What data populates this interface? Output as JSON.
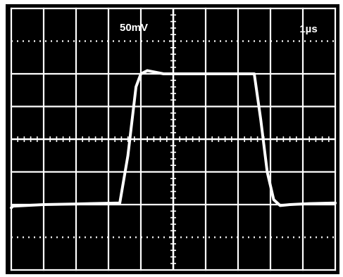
{
  "chart_data": {
    "type": "line",
    "title": "",
    "volts_per_div_label": "50mV",
    "time_per_div_label": "1µs",
    "divisions": {
      "horizontal": 10,
      "vertical": 8
    },
    "grid": true,
    "xlim": [
      0,
      10
    ],
    "ylim": [
      -4,
      4
    ],
    "series": [
      {
        "x": [
          0,
          0.05,
          1.0,
          2.0,
          3.35,
          3.6,
          3.85,
          4.0,
          4.2,
          4.45,
          4.7,
          5.0,
          6.0,
          7.5,
          7.7,
          7.9,
          8.1,
          8.3,
          8.6,
          9.2,
          10.0
        ],
        "y": [
          -2.1,
          -2.05,
          -2.0,
          -1.98,
          -1.95,
          -0.5,
          1.6,
          2.0,
          2.1,
          2.05,
          2.0,
          2.0,
          2.0,
          2.0,
          0.6,
          -1.0,
          -1.85,
          -2.03,
          -2.0,
          -1.97,
          -1.95
        ]
      }
    ]
  },
  "colors": {
    "screen_background": "#000000",
    "graticule": "#ffffff",
    "trace": "#ffffff",
    "bezel": "#ffffff"
  }
}
